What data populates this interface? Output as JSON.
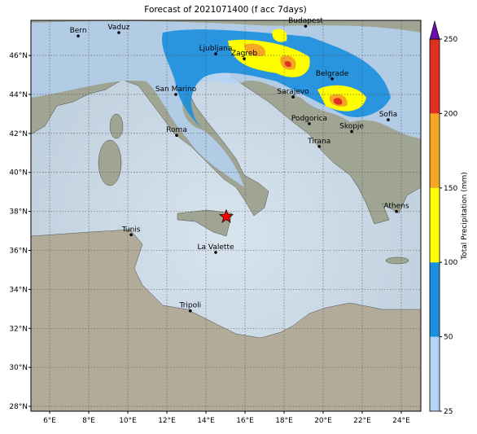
{
  "map": {
    "title": "Forecast of 2021071400 (f acc 7days)",
    "xlim": [
      5.04,
      25
    ],
    "ylim": [
      27.75,
      47.8
    ],
    "xticks": [
      {
        "value": 6,
        "label": "6°E"
      },
      {
        "value": 8,
        "label": "8°E"
      },
      {
        "value": 10,
        "label": "10°E"
      },
      {
        "value": 12,
        "label": "12°E"
      },
      {
        "value": 14,
        "label": "14°E"
      },
      {
        "value": 16,
        "label": "16°E"
      },
      {
        "value": 18,
        "label": "18°E"
      },
      {
        "value": 20,
        "label": "20°E"
      },
      {
        "value": 22,
        "label": "22°E"
      },
      {
        "value": 24,
        "label": "24°E"
      }
    ],
    "yticks": [
      {
        "value": 28,
        "label": "28°N"
      },
      {
        "value": 30,
        "label": "30°N"
      },
      {
        "value": 32,
        "label": "32°N"
      },
      {
        "value": 34,
        "label": "34°N"
      },
      {
        "value": 36,
        "label": "36°N"
      },
      {
        "value": 38,
        "label": "38°N"
      },
      {
        "value": 40,
        "label": "40°N"
      },
      {
        "value": 42,
        "label": "42°N"
      },
      {
        "value": 44,
        "label": "44°N"
      },
      {
        "value": 46,
        "label": "46°N"
      }
    ],
    "grid": true,
    "cities": [
      {
        "name": "Bern",
        "lon": 7.46,
        "lat": 47.0
      },
      {
        "name": "Vaduz",
        "lon": 9.54,
        "lat": 47.17
      },
      {
        "name": "Budapest",
        "lon": 19.1,
        "lat": 47.5
      },
      {
        "name": "Ljubljana",
        "lon": 14.5,
        "lat": 46.08
      },
      {
        "name": "Zagreb",
        "lon": 15.96,
        "lat": 45.83
      },
      {
        "name": "Belgrade",
        "lon": 20.46,
        "lat": 44.8
      },
      {
        "name": "San Marino",
        "lon": 12.46,
        "lat": 44.0
      },
      {
        "name": "Sarajevo",
        "lon": 18.46,
        "lat": 43.87
      },
      {
        "name": "Podgorica",
        "lon": 19.29,
        "lat": 42.5
      },
      {
        "name": "Skopje",
        "lon": 21.46,
        "lat": 42.1
      },
      {
        "name": "Sofia",
        "lon": 23.33,
        "lat": 42.7
      },
      {
        "name": "Roma",
        "lon": 12.5,
        "lat": 41.9
      },
      {
        "name": "Tirana",
        "lon": 19.8,
        "lat": 41.33
      },
      {
        "name": "Athens",
        "lon": 23.75,
        "lat": 38.0
      },
      {
        "name": "Tunis",
        "lon": 10.17,
        "lat": 36.8
      },
      {
        "name": "La Valette",
        "lon": 14.5,
        "lat": 35.9
      },
      {
        "name": "Tripoli",
        "lon": 13.2,
        "lat": 32.9
      }
    ],
    "star": {
      "lon": 15.04,
      "lat": 37.73,
      "color": "#ff0000"
    },
    "colorbar": {
      "label": "Total Precipitation (mm)",
      "levels": [
        25,
        50,
        100,
        150,
        200,
        250
      ],
      "colors": [
        "#b5d3f5",
        "#1a8fde",
        "#ffff00",
        "#f5a623",
        "#e03020"
      ],
      "extend_color": "#6a0dad"
    }
  }
}
